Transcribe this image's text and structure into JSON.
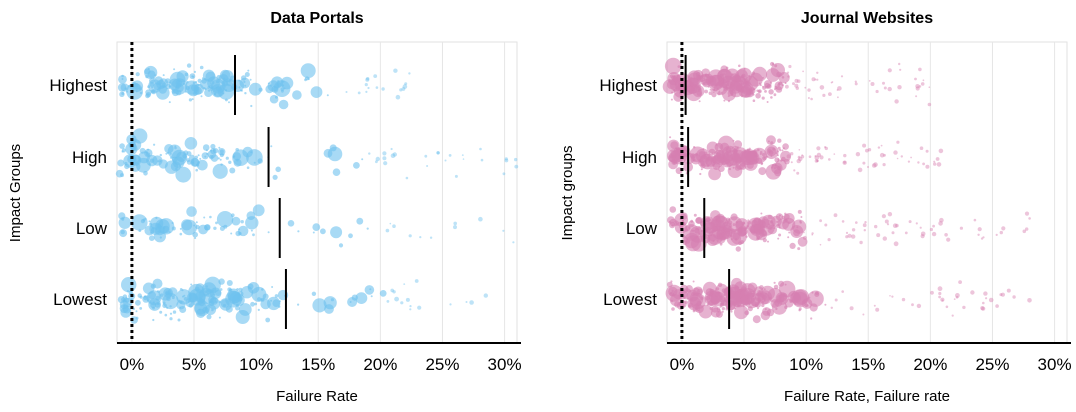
{
  "chart_data": [
    {
      "type": "scatter",
      "title": "Data Portals",
      "xlabel": "Failure Rate",
      "ylabel": "Impact Groups",
      "x_ticks": [
        "0%",
        "5%",
        "10%",
        "15%",
        "20%",
        "25%",
        "30%"
      ],
      "x_tick_values": [
        0,
        5,
        10,
        15,
        20,
        25,
        30
      ],
      "xlim": [
        -1.2,
        31
      ],
      "categories": [
        "Highest",
        "High",
        "Low",
        "Lowest"
      ],
      "point_color": "#6ec1ee",
      "reference_line": {
        "value": 0,
        "style": "dotted"
      },
      "medians": [
        {
          "group": "Highest",
          "value": 8.3
        },
        {
          "group": "High",
          "value": 11.0
        },
        {
          "group": "Low",
          "value": 11.9
        },
        {
          "group": "Lowest",
          "value": 12.4
        }
      ],
      "series": [
        {
          "group": "Highest",
          "min": -1,
          "max": 22.5,
          "density": "high",
          "n": 190
        },
        {
          "group": "High",
          "min": -1,
          "max": 31,
          "density": "medium",
          "n": 150
        },
        {
          "group": "Low",
          "min": -1,
          "max": 31,
          "density": "low",
          "n": 85
        },
        {
          "group": "Lowest",
          "min": -1,
          "max": 31,
          "density": "high",
          "n": 200
        }
      ],
      "grid": true
    },
    {
      "type": "scatter",
      "title": "Journal Websites",
      "xlabel": "Failure Rate, Failure rate",
      "ylabel": "Impact groups",
      "x_ticks": [
        "0%",
        "5%",
        "10%",
        "15%",
        "20%",
        "25%",
        "30%"
      ],
      "x_tick_values": [
        0,
        5,
        10,
        15,
        20,
        25,
        30
      ],
      "xlim": [
        -1.2,
        31
      ],
      "categories": [
        "Highest",
        "High",
        "Low",
        "Lowest"
      ],
      "point_color": "#d67fb0",
      "reference_line": {
        "value": 0,
        "style": "dotted"
      },
      "medians": [
        {
          "group": "Highest",
          "value": 0.3
        },
        {
          "group": "High",
          "value": 0.5
        },
        {
          "group": "Low",
          "value": 1.8
        },
        {
          "group": "Lowest",
          "value": 3.8
        }
      ],
      "series": [
        {
          "group": "Highest",
          "min": -1,
          "max": 20,
          "density": "high",
          "n": 260
        },
        {
          "group": "High",
          "min": -1,
          "max": 21,
          "density": "high",
          "n": 250
        },
        {
          "group": "Low",
          "min": -1,
          "max": 28,
          "density": "high",
          "n": 260
        },
        {
          "group": "Lowest",
          "min": -1,
          "max": 28,
          "density": "high",
          "n": 270
        }
      ],
      "grid": true
    }
  ]
}
